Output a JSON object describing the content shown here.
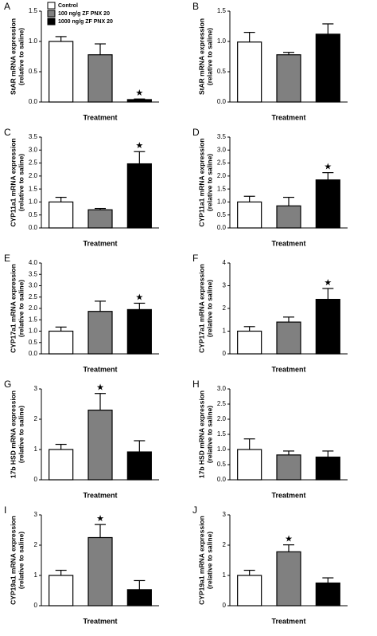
{
  "chart_data": [
    {
      "type": "bar",
      "panel": "A",
      "ylabel": [
        "StAR mRNA expression",
        "(relative to saline)"
      ],
      "xlabel": "Treatment",
      "legend": [
        "Control",
        "100 ng/g ZF PNX 20",
        "1000 ng/g ZF PNX 20"
      ],
      "colors": [
        "#ffffff",
        "#808080",
        "#000000"
      ],
      "values": [
        1.0,
        0.78,
        0.04
      ],
      "errors": [
        0.08,
        0.18,
        0.01
      ],
      "markers": [
        null,
        null,
        "★"
      ],
      "ylim": [
        0,
        1.5
      ],
      "yticks": [
        {
          "value": 0,
          "label": "0.0"
        },
        {
          "value": 0.5,
          "label": "0.5"
        },
        {
          "value": 1,
          "label": "1.0"
        },
        {
          "value": 1.5,
          "label": "1.5"
        }
      ]
    },
    {
      "type": "bar",
      "panel": "B",
      "ylabel": [
        "StAR mRNA expression",
        "(relative to saline)"
      ],
      "xlabel": "Treatment",
      "colors": [
        "#ffffff",
        "#808080",
        "#000000"
      ],
      "values": [
        0.99,
        0.78,
        1.12
      ],
      "errors": [
        0.16,
        0.04,
        0.17
      ],
      "markers": [
        null,
        null,
        null
      ],
      "ylim": [
        0,
        1.5
      ],
      "yticks": [
        {
          "value": 0,
          "label": "0.0"
        },
        {
          "value": 0.5,
          "label": "0.5"
        },
        {
          "value": 1,
          "label": "1.0"
        },
        {
          "value": 1.5,
          "label": "1.5"
        }
      ]
    },
    {
      "type": "bar",
      "panel": "C",
      "ylabel": [
        "CYP11a1 mRNA expression",
        "(relative to saline)"
      ],
      "xlabel": "Treatment",
      "colors": [
        "#ffffff",
        "#808080",
        "#000000"
      ],
      "values": [
        1.0,
        0.7,
        2.47
      ],
      "errors": [
        0.18,
        0.05,
        0.47
      ],
      "markers": [
        null,
        null,
        "★"
      ],
      "ylim": [
        0,
        3.5
      ],
      "yticks": [
        {
          "value": 0,
          "label": "0.0"
        },
        {
          "value": 0.5,
          "label": "0.5"
        },
        {
          "value": 1,
          "label": "1.0"
        },
        {
          "value": 1.5,
          "label": "1.5"
        },
        {
          "value": 2,
          "label": "2.0"
        },
        {
          "value": 2.5,
          "label": "2.5"
        },
        {
          "value": 3,
          "label": "3.0"
        },
        {
          "value": 3.5,
          "label": "3.5"
        }
      ]
    },
    {
      "type": "bar",
      "panel": "D",
      "ylabel": [
        "CYP11a1 mRNA expression",
        "(relative to saline)"
      ],
      "xlabel": "Treatment",
      "colors": [
        "#ffffff",
        "#808080",
        "#000000"
      ],
      "values": [
        1.0,
        0.85,
        1.85
      ],
      "errors": [
        0.22,
        0.33,
        0.28
      ],
      "markers": [
        null,
        null,
        "★"
      ],
      "ylim": [
        0,
        3.5
      ],
      "yticks": [
        {
          "value": 0,
          "label": "0.0"
        },
        {
          "value": 0.5,
          "label": "0.5"
        },
        {
          "value": 1,
          "label": "1.0"
        },
        {
          "value": 1.5,
          "label": "1.5"
        },
        {
          "value": 2,
          "label": "2.0"
        },
        {
          "value": 2.5,
          "label": "2.5"
        },
        {
          "value": 3,
          "label": "3.0"
        },
        {
          "value": 3.5,
          "label": "3.5"
        }
      ]
    },
    {
      "type": "bar",
      "panel": "E",
      "ylabel": [
        "CYP17a1 mRNA expression",
        "(relative to saline)"
      ],
      "xlabel": "Treatment",
      "colors": [
        "#ffffff",
        "#808080",
        "#000000"
      ],
      "values": [
        1.0,
        1.87,
        1.95
      ],
      "errors": [
        0.18,
        0.45,
        0.28
      ],
      "markers": [
        null,
        null,
        "★"
      ],
      "ylim": [
        0,
        4
      ],
      "yticks": [
        {
          "value": 0,
          "label": "0.0"
        },
        {
          "value": 0.5,
          "label": "0.5"
        },
        {
          "value": 1,
          "label": "1.0"
        },
        {
          "value": 1.5,
          "label": "1.5"
        },
        {
          "value": 2,
          "label": "2.0"
        },
        {
          "value": 2.5,
          "label": "2.5"
        },
        {
          "value": 3,
          "label": "3.0"
        },
        {
          "value": 3.5,
          "label": "3.5"
        },
        {
          "value": 4,
          "label": "4.0"
        }
      ]
    },
    {
      "type": "bar",
      "panel": "F",
      "ylabel": [
        "CYP17a1 mRNA expression",
        "(relative to saline)"
      ],
      "xlabel": "Treatment",
      "colors": [
        "#ffffff",
        "#808080",
        "#000000"
      ],
      "values": [
        1.0,
        1.4,
        2.4
      ],
      "errors": [
        0.2,
        0.22,
        0.48
      ],
      "markers": [
        null,
        null,
        "★"
      ],
      "ylim": [
        0,
        4
      ],
      "yticks": [
        0,
        1,
        2,
        3,
        4
      ]
    },
    {
      "type": "bar",
      "panel": "G",
      "ylabel": [
        "17b HSD mRNA expression",
        "(relative to saline)"
      ],
      "xlabel": "Treatment",
      "colors": [
        "#ffffff",
        "#808080",
        "#000000"
      ],
      "values": [
        1.0,
        2.3,
        0.92
      ],
      "errors": [
        0.17,
        0.55,
        0.37
      ],
      "markers": [
        null,
        "★",
        null
      ],
      "ylim": [
        0,
        3
      ],
      "yticks": [
        0,
        1,
        2,
        3
      ]
    },
    {
      "type": "bar",
      "panel": "H",
      "ylabel": [
        "17b HSD mRNA expression",
        "(relative to saline)"
      ],
      "xlabel": "Treatment",
      "colors": [
        "#ffffff",
        "#808080",
        "#000000"
      ],
      "values": [
        1.0,
        0.82,
        0.75
      ],
      "errors": [
        0.35,
        0.13,
        0.2
      ],
      "markers": [
        null,
        null,
        null
      ],
      "ylim": [
        0,
        3
      ],
      "yticks": [
        {
          "value": 0,
          "label": "0.0"
        },
        {
          "value": 0.5,
          "label": "0.5"
        },
        {
          "value": 1,
          "label": "1.0"
        },
        {
          "value": 1.5,
          "label": "1.5"
        },
        {
          "value": 2,
          "label": "2.0"
        },
        {
          "value": 2.5,
          "label": "2.5"
        },
        {
          "value": 3,
          "label": "3.0"
        }
      ]
    },
    {
      "type": "bar",
      "panel": "I",
      "ylabel": [
        "CYP19a1 mRNA expression",
        "(relative to saline)"
      ],
      "xlabel": "Treatment",
      "colors": [
        "#ffffff",
        "#808080",
        "#000000"
      ],
      "values": [
        1.0,
        2.25,
        0.53
      ],
      "errors": [
        0.17,
        0.43,
        0.3
      ],
      "markers": [
        null,
        "★",
        null
      ],
      "ylim": [
        0,
        3
      ],
      "yticks": [
        0,
        1,
        2,
        3
      ]
    },
    {
      "type": "bar",
      "panel": "J",
      "ylabel": [
        "CYP19a1 mRNA expression",
        "(relative to saline)"
      ],
      "xlabel": "Treatment",
      "colors": [
        "#ffffff",
        "#808080",
        "#000000"
      ],
      "values": [
        1.0,
        1.78,
        0.75
      ],
      "errors": [
        0.17,
        0.23,
        0.17
      ],
      "markers": [
        null,
        "★",
        null
      ],
      "ylim": [
        0,
        3
      ],
      "yticks": [
        0,
        1,
        2,
        3
      ]
    }
  ]
}
